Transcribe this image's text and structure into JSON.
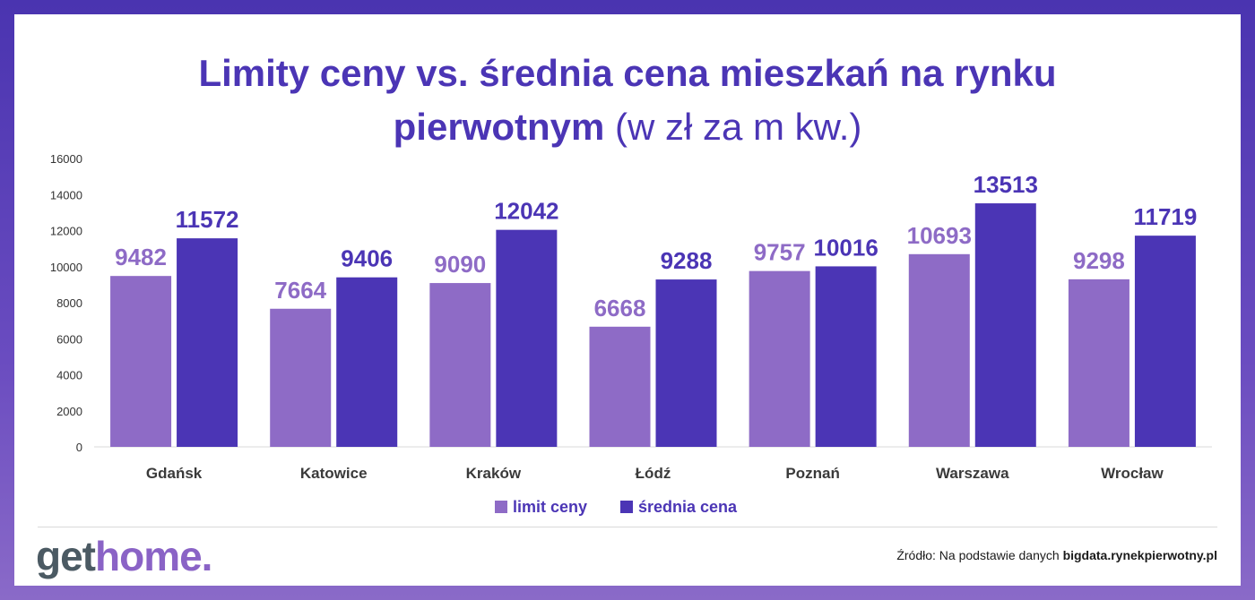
{
  "chart_data": {
    "type": "bar",
    "title_main": "Limity ceny vs. średnia cena mieszkań na rynku",
    "title_line2_bold": "pierwotnym",
    "title_line2_unit": "(w zł za m kw.)",
    "categories": [
      "Gdańsk",
      "Katowice",
      "Kraków",
      "Łódź",
      "Poznań",
      "Warszawa",
      "Wrocław"
    ],
    "series": [
      {
        "name": "limit ceny",
        "color": "#8e6bc6",
        "values": [
          9482,
          7664,
          9090,
          6668,
          9757,
          10693,
          9298
        ]
      },
      {
        "name": "średnia cena",
        "color": "#4b35b5",
        "values": [
          11572,
          9406,
          12042,
          9288,
          10016,
          13513,
          11719
        ]
      }
    ],
    "ylim": [
      0,
      16000
    ],
    "yticks": [
      "0",
      "2000",
      "4000",
      "6000",
      "8000",
      "10000",
      "12000",
      "14000",
      "16000"
    ],
    "grid": false,
    "legend_position": "bottom-center"
  },
  "footer": {
    "logo_get": "get",
    "logo_home": "home.",
    "source_prefix": "Źródło: Na podstawie danych",
    "source_bold": "bigdata.rynekpierwotny.pl"
  }
}
